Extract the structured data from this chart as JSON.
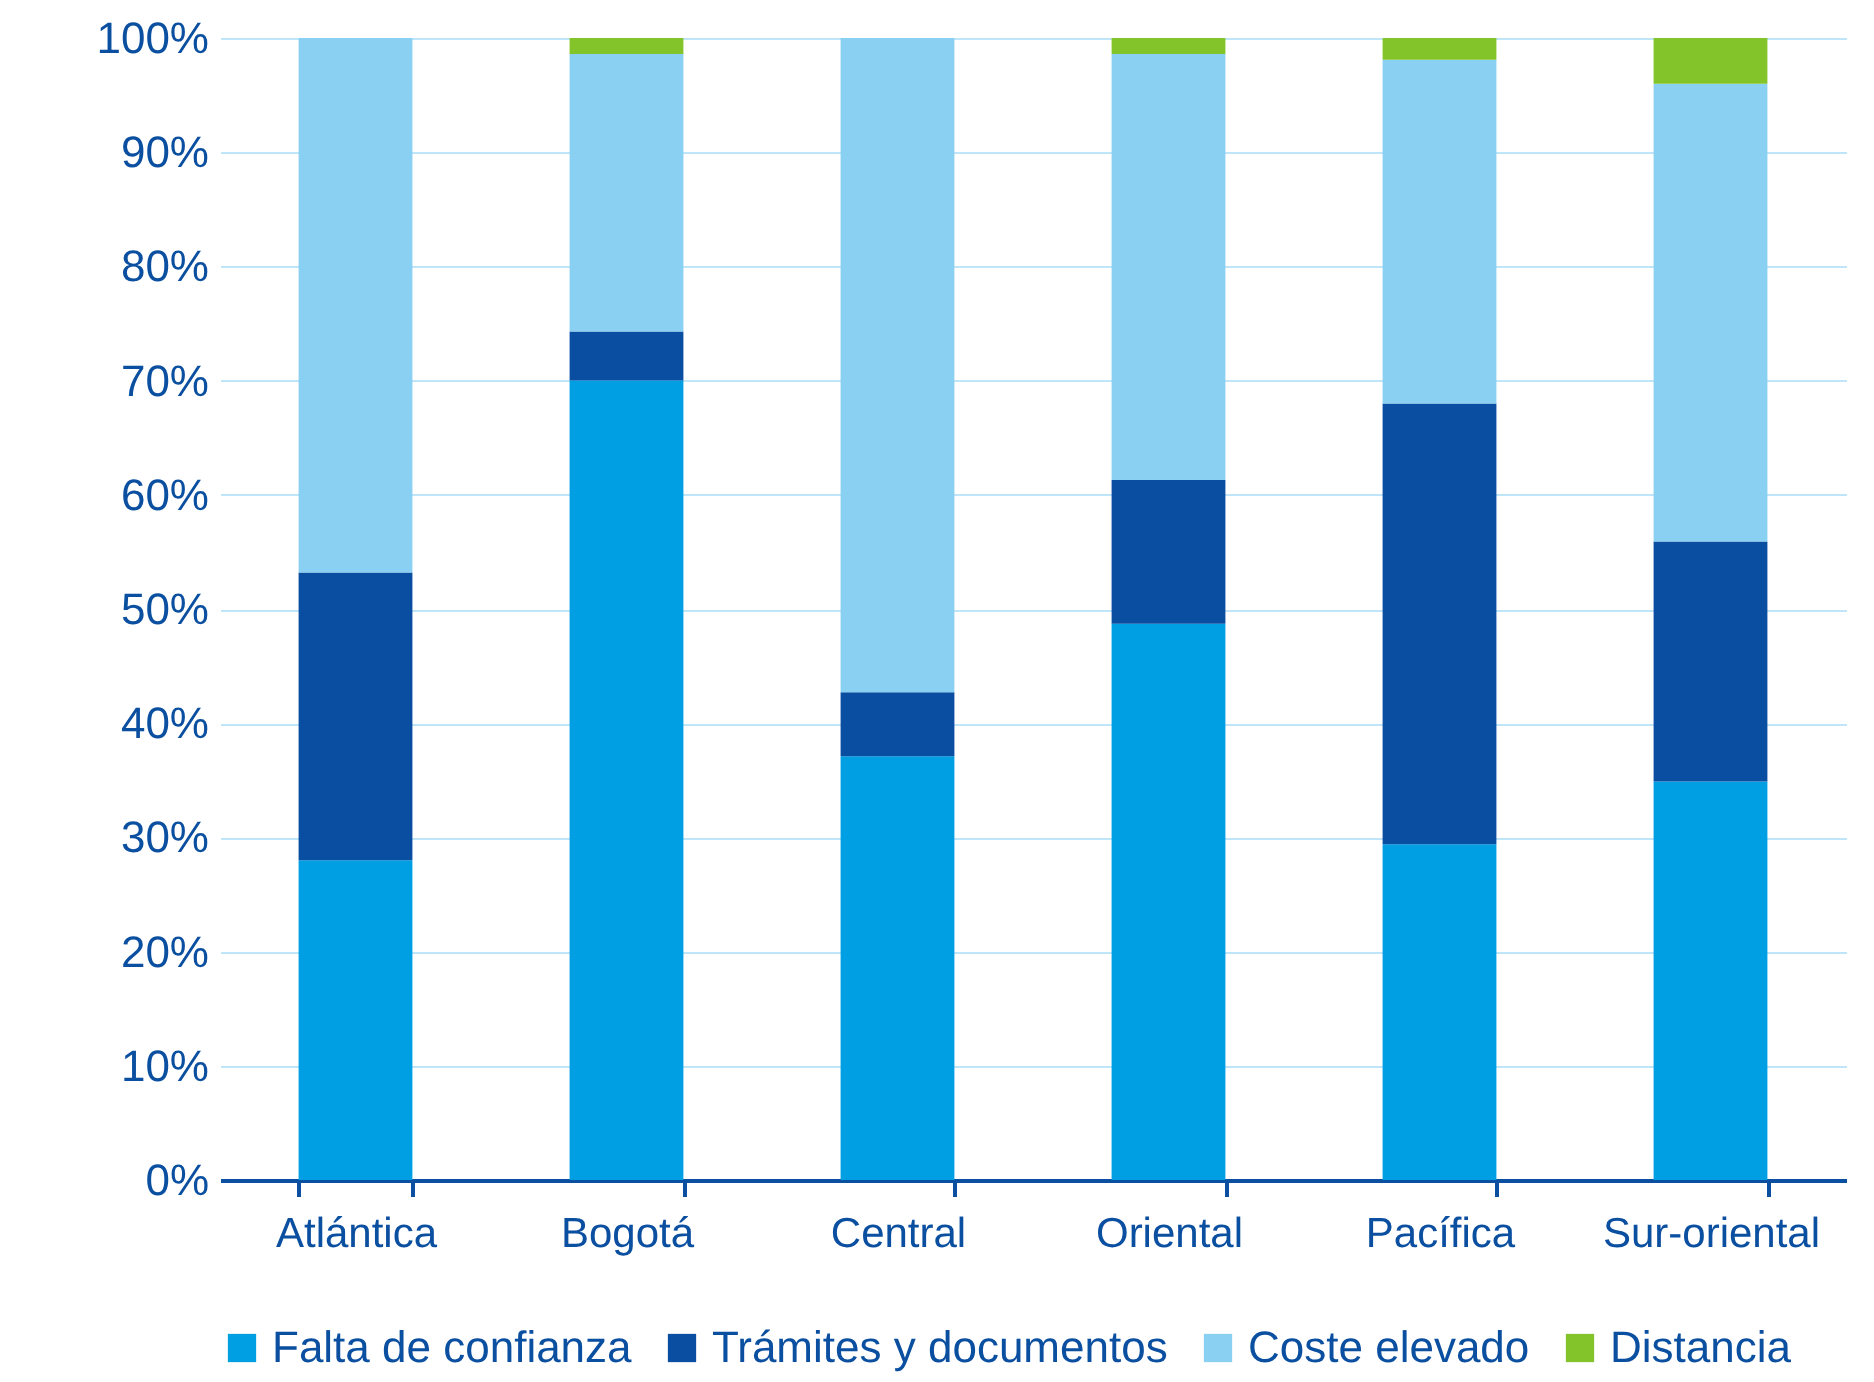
{
  "chart_data": {
    "type": "bar",
    "stacked": true,
    "categories": [
      "Atlántica",
      "Bogotá",
      "Central",
      "Oriental",
      "Pacífica",
      "Sur-oriental"
    ],
    "series": [
      {
        "name": "Falta de confianza",
        "color": "#009fe3",
        "values": [
          28.0,
          70.0,
          37.1,
          48.7,
          29.4,
          34.9
        ]
      },
      {
        "name": "Trámites y documentos",
        "color": "#0a4ea2",
        "values": [
          25.2,
          4.3,
          5.6,
          12.6,
          38.6,
          21.0
        ]
      },
      {
        "name": "Coste elevado",
        "color": "#8ad0f2",
        "values": [
          46.8,
          24.3,
          57.3,
          37.3,
          30.1,
          40.1
        ]
      },
      {
        "name": "Distancia",
        "color": "#84c42b",
        "values": [
          0,
          1.4,
          0,
          1.4,
          1.9,
          4.0
        ]
      }
    ],
    "ylim": [
      0,
      100
    ],
    "yticks": [
      {
        "value": 0,
        "label": "0%"
      },
      {
        "value": 10,
        "label": "10%"
      },
      {
        "value": 20,
        "label": "20%"
      },
      {
        "value": 30,
        "label": "30%"
      },
      {
        "value": 40,
        "label": "40%"
      },
      {
        "value": 50,
        "label": "50%"
      },
      {
        "value": 60,
        "label": "60%"
      },
      {
        "value": 70,
        "label": "70%"
      },
      {
        "value": 80,
        "label": "80%"
      },
      {
        "value": 90,
        "label": "90%"
      },
      {
        "value": 100,
        "label": "100%"
      }
    ],
    "grid": "y",
    "legend": "bottom"
  }
}
